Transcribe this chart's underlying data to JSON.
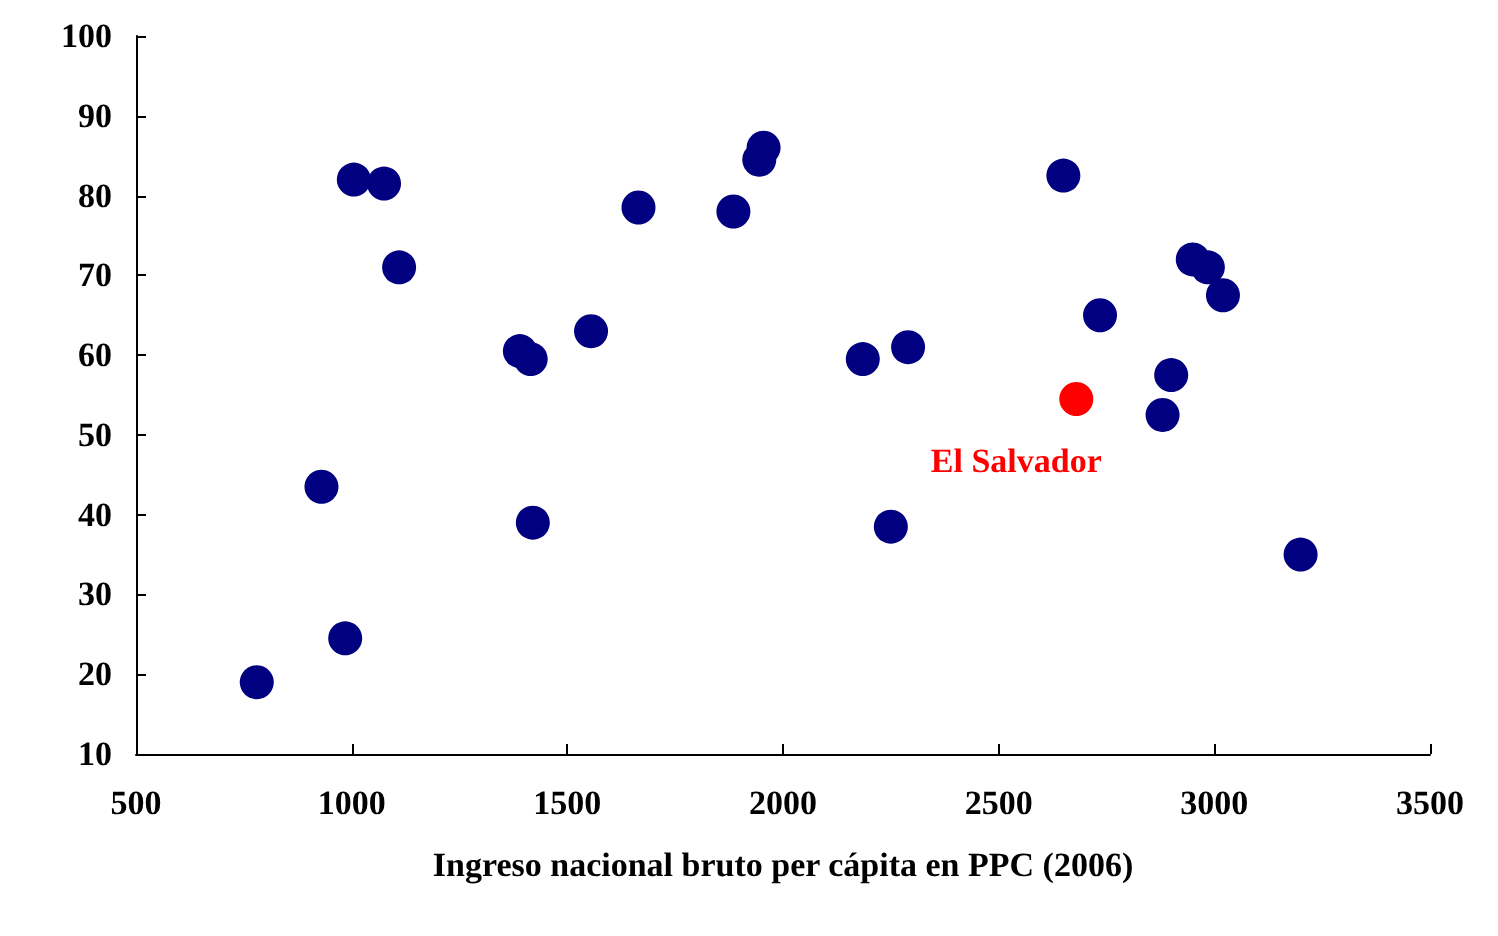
{
  "chart_data": {
    "type": "scatter",
    "xlabel": "Ingreso nacional bruto per cápita en PPC (2006)",
    "xlim": [
      500,
      3500
    ],
    "xticks": [
      500,
      1000,
      1500,
      2000,
      2500,
      3000,
      3500
    ],
    "ylim": [
      10,
      100
    ],
    "yticks": [
      10,
      20,
      30,
      40,
      50,
      60,
      70,
      80,
      90,
      100
    ],
    "grid": false,
    "legend": false,
    "marker": "circle",
    "series": [
      {
        "color": "#000080",
        "x": [
          780,
          930,
          985,
          1005,
          1075,
          1110,
          1390,
          1415,
          1420,
          1555,
          1665,
          1885,
          1945,
          1955,
          2185,
          2290,
          2250,
          2650,
          2735,
          2880,
          2900,
          2950,
          2985,
          3020,
          3200
        ],
        "values": [
          19,
          43.5,
          24.5,
          82,
          81.5,
          71,
          60.5,
          59.5,
          39,
          63,
          78.5,
          78,
          84.5,
          86,
          59.5,
          61,
          38.5,
          82.5,
          65,
          52.5,
          57.5,
          72,
          71,
          67.5,
          35
        ]
      },
      {
        "name": "El Salvador",
        "color": "#ff0000",
        "x": [
          2680
        ],
        "values": [
          54.5
        ]
      }
    ]
  }
}
